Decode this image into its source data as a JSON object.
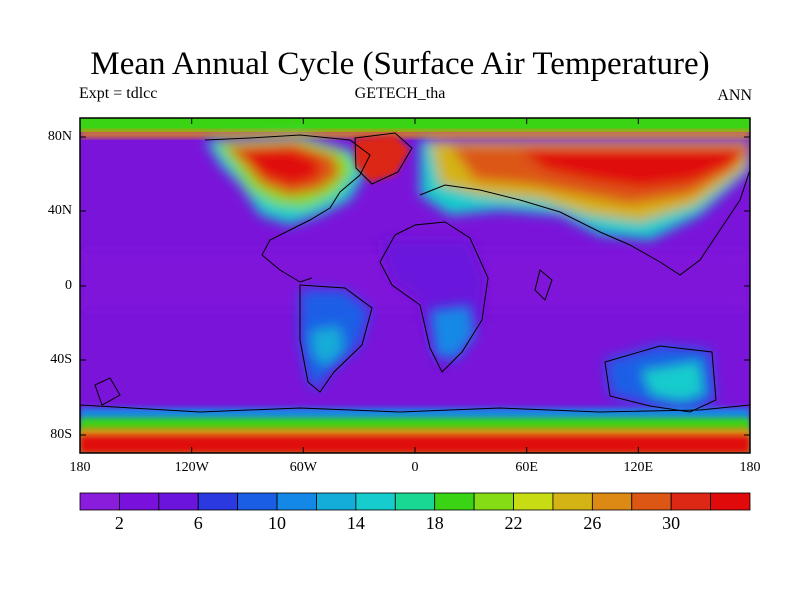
{
  "title": "Mean Annual Cycle (Surface Air Temperature)",
  "subtitle_left": "Expt = tdlcc",
  "subtitle_center": "GETECH_tha",
  "subtitle_right": "ANN",
  "map": {
    "lon_range": [
      -180,
      180
    ],
    "lat_range": [
      -90,
      90
    ],
    "x_tick_labels": [
      "180",
      "120W",
      "60W",
      "0",
      "60E",
      "120E",
      "180"
    ],
    "y_tick_labels": [
      "80N",
      "40N",
      "0",
      "40S",
      "80S"
    ],
    "ocean_color": "#7a14d9",
    "coastline_color": "#000000"
  },
  "colorbar": {
    "labels": [
      "2",
      "6",
      "10",
      "14",
      "18",
      "22",
      "26",
      "30"
    ],
    "colors": [
      "#8a1cdc",
      "#7a10dc",
      "#6a14dc",
      "#2a3ae0",
      "#1a5ee6",
      "#1488e6",
      "#14acd8",
      "#16cccc",
      "#18d894",
      "#3ad414",
      "#86dc14",
      "#c8dc14",
      "#d4b414",
      "#dc8a14",
      "#dc5614",
      "#dc2814",
      "#e00a0a"
    ]
  }
}
